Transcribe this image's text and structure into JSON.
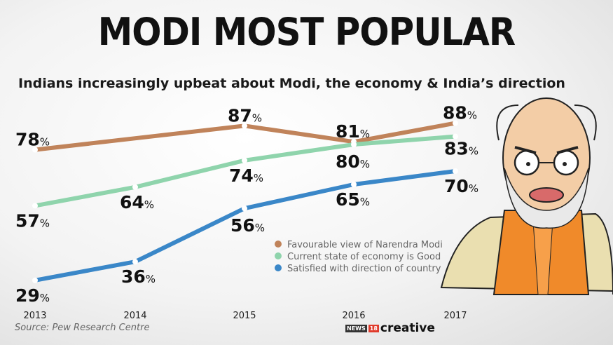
{
  "title": "MODI MOST POPULAR",
  "subtitle": "Indians increasingly upbeat about Modi, the economy & India’s direction",
  "source": "Source: Pew Research Centre",
  "brand": {
    "news": "NEWS",
    "num": "18",
    "creative": "creative"
  },
  "chart_data": {
    "type": "line",
    "categories": [
      "2013",
      "2014",
      "2015",
      "2016",
      "2017"
    ],
    "value_suffix": "%",
    "grid": false,
    "legend_placement": "center-right",
    "series": [
      {
        "name": "Favourable view of Narendra Modi",
        "color": "#c0835a",
        "values": [
          78,
          null,
          87,
          81,
          88
        ]
      },
      {
        "name": "Current state of economy is Good",
        "color": "#8fd4ac",
        "values": [
          57,
          64,
          74,
          80,
          83
        ]
      },
      {
        "name": "Satisfied with direction of country",
        "color": "#3a87c8",
        "values": [
          29,
          36,
          56,
          65,
          70
        ]
      }
    ]
  }
}
